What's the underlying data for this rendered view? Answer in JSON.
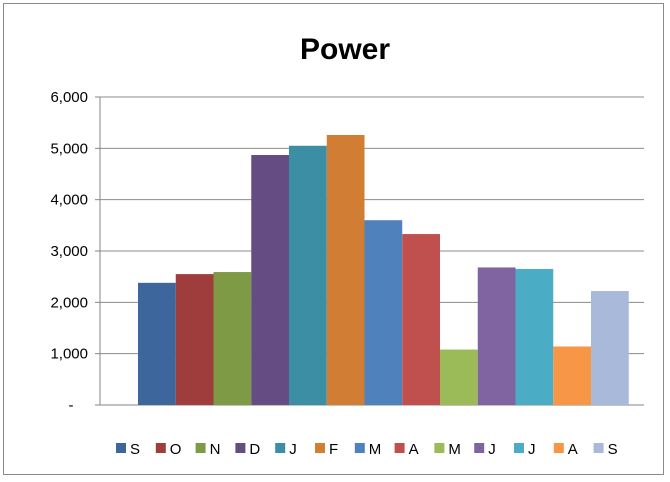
{
  "chart_data": {
    "type": "bar",
    "title": "Power",
    "xlabel": "",
    "ylabel": "",
    "ylim": [
      0,
      6000
    ],
    "yticks": [
      0,
      1000,
      2000,
      3000,
      4000,
      5000,
      6000
    ],
    "ytick_labels": [
      "-",
      "1,000",
      "2,000",
      "3,000",
      "4,000",
      "5,000",
      "6,000"
    ],
    "grid": true,
    "legend_position": "bottom",
    "series": [
      {
        "name": "S",
        "value": 2380,
        "color": "#3d669c"
      },
      {
        "name": "O",
        "value": 2550,
        "color": "#9e3d3b"
      },
      {
        "name": "N",
        "value": 2590,
        "color": "#7e9a45"
      },
      {
        "name": "D",
        "value": 4870,
        "color": "#654d84"
      },
      {
        "name": "J",
        "value": 5050,
        "color": "#3b8ea3"
      },
      {
        "name": "F",
        "value": 5260,
        "color": "#d17d33"
      },
      {
        "name": "M",
        "value": 3600,
        "color": "#4f81bd"
      },
      {
        "name": "A",
        "value": 3330,
        "color": "#c0504d"
      },
      {
        "name": "M",
        "value": 1080,
        "color": "#9bbb59"
      },
      {
        "name": "J",
        "value": 2680,
        "color": "#8064a2"
      },
      {
        "name": "J",
        "value": 2650,
        "color": "#4bacc6"
      },
      {
        "name": "A",
        "value": 1140,
        "color": "#f79646"
      },
      {
        "name": "S",
        "value": 2220,
        "color": "#a9b9d9"
      }
    ]
  }
}
